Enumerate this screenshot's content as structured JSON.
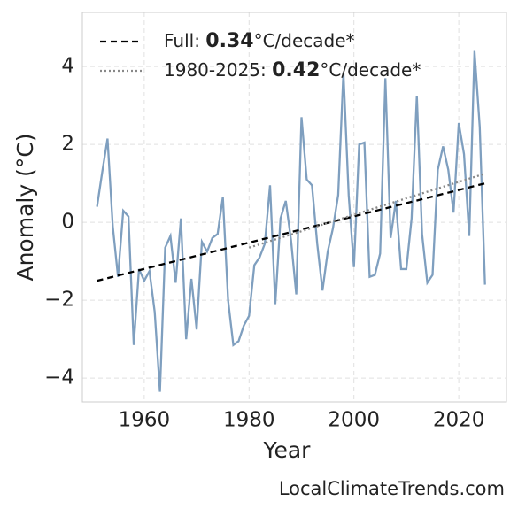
{
  "chart_data": {
    "type": "line",
    "xlabel": "Year",
    "ylabel": "Anomaly (°C)",
    "source": "LocalClimateTrends.com",
    "xlim": [
      1948.2,
      2029.1
    ],
    "xticks": [
      1960,
      1980,
      2000,
      2020
    ],
    "ylim": [
      -4.61,
      5.39
    ],
    "yticks": [
      {
        "value": -4,
        "label": "−4"
      },
      {
        "value": -2,
        "label": "−2"
      },
      0,
      2,
      4
    ],
    "grid": true,
    "series": [
      {
        "color": "#7f9fbf",
        "x": [
          1951,
          1952,
          1953,
          1954,
          1955,
          1956,
          1957,
          1958,
          1959,
          1960,
          1961,
          1962,
          1963,
          1964,
          1965,
          1966,
          1967,
          1968,
          1969,
          1970,
          1971,
          1972,
          1973,
          1974,
          1975,
          1976,
          1977,
          1978,
          1979,
          1980,
          1981,
          1982,
          1983,
          1984,
          1985,
          1986,
          1987,
          1988,
          1989,
          1990,
          1991,
          1992,
          1993,
          1994,
          1995,
          1996,
          1997,
          1998,
          1999,
          2000,
          2001,
          2002,
          2003,
          2004,
          2005,
          2006,
          2007,
          2008,
          2009,
          2010,
          2011,
          2012,
          2013,
          2014,
          2015,
          2016,
          2017,
          2018,
          2019,
          2020,
          2021,
          2022,
          2023,
          2024,
          2025
        ],
        "values": [
          0.4,
          1.3,
          2.15,
          -0.1,
          -1.4,
          0.3,
          0.15,
          -3.15,
          -1.2,
          -1.5,
          -1.25,
          -2.3,
          -4.35,
          -0.65,
          -0.35,
          -1.55,
          0.1,
          -3.0,
          -1.45,
          -2.75,
          -0.5,
          -0.75,
          -0.4,
          -0.3,
          0.65,
          -2.0,
          -3.15,
          -3.05,
          -2.65,
          -2.4,
          -1.1,
          -0.9,
          -0.55,
          0.95,
          -2.1,
          0.1,
          0.55,
          -0.45,
          -1.85,
          2.7,
          1.1,
          0.95,
          -0.55,
          -1.75,
          -0.75,
          -0.15,
          0.7,
          3.85,
          0.7,
          -1.15,
          2.0,
          2.05,
          -1.4,
          -1.35,
          -0.8,
          3.7,
          -0.4,
          0.55,
          -1.2,
          -1.2,
          0.1,
          3.25,
          -0.3,
          -1.55,
          -1.35,
          1.35,
          1.95,
          1.35,
          0.25,
          2.55,
          1.75,
          -0.35,
          4.4,
          2.45,
          -1.6
        ]
      },
      {
        "name": [
          "Full: ",
          "0.34",
          "°C/decade*"
        ],
        "color": "#000000",
        "dash": "7,5",
        "x": [
          1951,
          2025
        ],
        "values": [
          -1.5,
          1.0
        ]
      },
      {
        "name": [
          "1980-2025: ",
          "0.42",
          "°C/decade*"
        ],
        "color": "#888888",
        "dash": "2,3",
        "x": [
          1980,
          2025
        ],
        "values": [
          -0.65,
          1.25
        ]
      }
    ]
  }
}
